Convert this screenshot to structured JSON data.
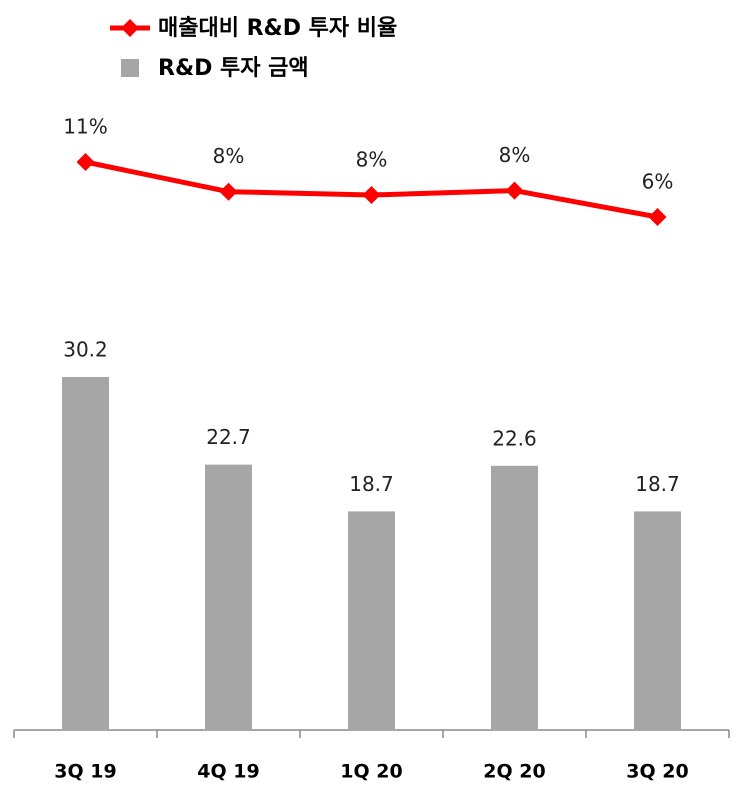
{
  "chart_data": {
    "type": "combo",
    "categories": [
      "3Q 19",
      "4Q 19",
      "1Q 20",
      "2Q 20",
      "3Q 20"
    ],
    "series": [
      {
        "name": "R&D 투자 금액",
        "type": "bar",
        "color": "#a6a6a6",
        "values": [
          30.2,
          22.7,
          18.7,
          22.6,
          18.7
        ]
      },
      {
        "name": "매출대비 R&D 투자 비율",
        "type": "line",
        "axis": "y2",
        "color": "#ff0000",
        "values": [
          11,
          8.3,
          8,
          8.4,
          6
        ],
        "value_labels": [
          "11%",
          "8%",
          "8%",
          "8%",
          "6%"
        ]
      }
    ],
    "ylim": [
      0,
      40
    ],
    "y2lim": [
      0,
      12
    ],
    "legend": "top-left"
  }
}
